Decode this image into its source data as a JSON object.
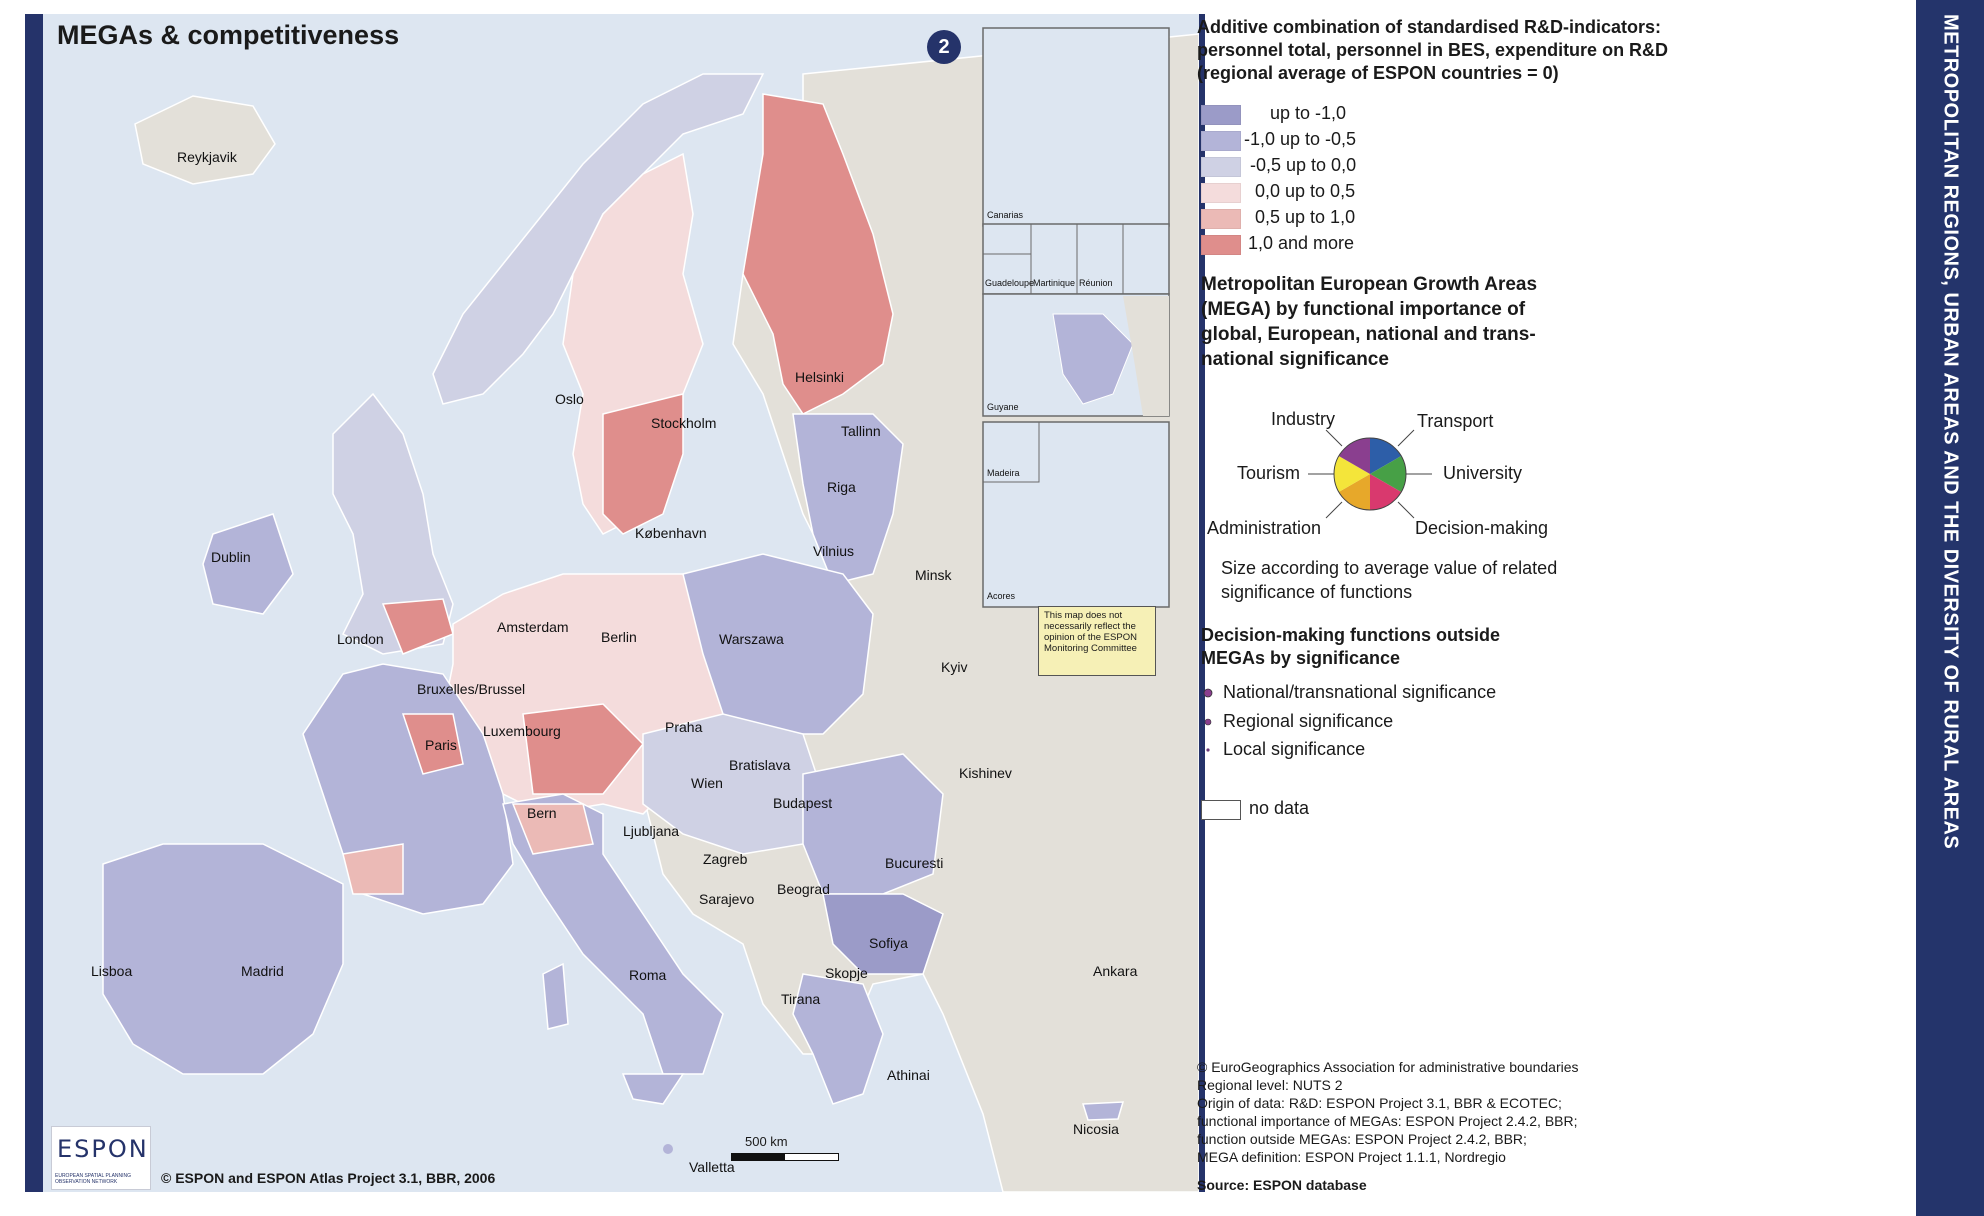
{
  "map": {
    "title": "MEGAs & competitiveness",
    "sheet_number": "2",
    "disclaimer": "This map does not necessarily reflect the opinion of the ESPON Monitoring Committee",
    "copyright": "© ESPON and ESPON Atlas Project 3.1, BBR, 2006",
    "scale_label": "500 km",
    "logo_word": "ESPON",
    "logo_subtitle": "EUROPEAN SPATIAL PLANNING OBSERVATION NETWORK",
    "colors": {
      "sea": "#dde6f1",
      "non_espon_land": "#e3e0d9",
      "frame": "#25336a",
      "class_1": "#9b9bc8",
      "class_2": "#b3b4d8",
      "class_3": "#cfd1e4",
      "class_4": "#f4dcdc",
      "class_5": "#ebbab6",
      "class_6": "#df8e8c"
    },
    "cities": [
      "Reykjavik",
      "Oslo",
      "Stockholm",
      "Helsinki",
      "Tallinn",
      "Riga",
      "København",
      "Vilnius",
      "Minsk",
      "Dublin",
      "London",
      "Amsterdam",
      "Berlin",
      "Warszawa",
      "Bruxelles/Brussel",
      "Luxembourg",
      "Praha",
      "Paris",
      "Kyiv",
      "Wien",
      "Bratislava",
      "Budapest",
      "Bern",
      "Ljubljana",
      "Kishinev",
      "Zagreb",
      "Beograd",
      "Bucuresti",
      "Sarajevo",
      "Madrid",
      "Lisboa",
      "Roma",
      "Sofiya",
      "Skopje",
      "Tirana",
      "Ankara",
      "Athinai",
      "Nicosia",
      "Valletta"
    ],
    "insets": [
      "Canarias",
      "Guadeloupe",
      "Martinique",
      "Réunion",
      "Guyane",
      "Madeira",
      "Acores"
    ]
  },
  "side_band": "METROPOLITAN REGIONS, URBAN AREAS AND THE DIVERSITY OF RURAL AREAS",
  "legend": {
    "rd_title": "Additive combination of standardised R&D-indicators: personnel total, personnel in BES, expenditure on R&D (regional average of ESPON countries = 0)",
    "rd_title_lines": [
      "Additive combination of standardised R&D-indicators:",
      "personnel total, personnel in BES, expenditure on R&D",
      "(regional average of ESPON countries = 0)"
    ],
    "classes": [
      "up to -1,0",
      "-1,0 up to -0,5",
      "-0,5 up to 0,0",
      "0,0 up to 0,5",
      "0,5 up to 1,0",
      "1,0 and more"
    ],
    "mega_title": "Metropolitan European Growth Areas (MEGA) by functional importance of global, European, national and trans-national significance",
    "mega_title_lines": [
      "Metropolitan European Growth Areas",
      "(MEGA) by functional importance of",
      "global, European, national and trans-",
      "national significance"
    ],
    "pie": {
      "Industry": {
        "label": "Industry",
        "color": "#8a3f8f"
      },
      "Transport": {
        "label": "Transport",
        "color": "#2d5ea8"
      },
      "University": {
        "label": "University",
        "color": "#47a046"
      },
      "Decision-making": {
        "label": "Decision-making",
        "color": "#d9396e"
      },
      "Administration": {
        "label": "Administration",
        "color": "#e7a82a"
      },
      "Tourism": {
        "label": "Tourism",
        "color": "#f4e53a"
      }
    },
    "size_note_lines": [
      "Size according to average value of related",
      "significance of functions"
    ],
    "dm_title_lines": [
      "Decision-making functions outside",
      "MEGAs by significance"
    ],
    "dm_items": [
      "National/transnational significance",
      "Regional significance",
      "Local significance"
    ],
    "no_data": "no data",
    "credits": [
      "© EuroGeographics Association for administrative boundaries",
      "Regional level: NUTS 2",
      "Origin of data: R&D: ESPON Project 3.1, BBR & ECOTEC;",
      "functional importance of MEGAs: ESPON Project 2.4.2, BBR;",
      "function outside MEGAs: ESPON Project 2.4.2, BBR;",
      "MEGA definition: ESPON Project 1.1.1, Nordregio"
    ],
    "source": "Source: ESPON database"
  }
}
